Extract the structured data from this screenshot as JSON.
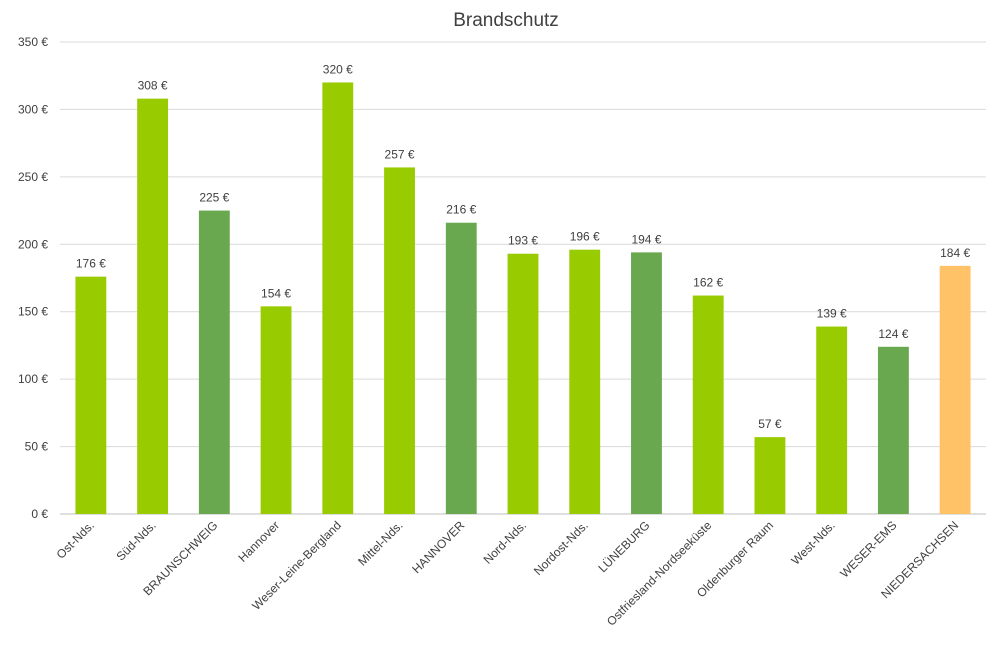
{
  "chart_data": {
    "type": "bar",
    "title": "Brandschutz",
    "xlabel": "",
    "ylabel": "",
    "ylim": [
      0,
      350
    ],
    "ytick_step": 50,
    "ytick_labels": [
      "0 €",
      "50 €",
      "100 €",
      "150 €",
      "200 €",
      "250 €",
      "300 €",
      "350 €"
    ],
    "grid": true,
    "legend": "none",
    "categories": [
      "Ost-Nds.",
      "Süd-Nds.",
      "BRAUNSCHWEIG",
      "Hannover",
      "Weser-Leine-Bergland",
      "Mittel-Nds.",
      "HANNOVER",
      "Nord-Nds.",
      "Nordost-Nds.",
      "LÜNEBURG",
      "Ostfriesland-Nordseeküste",
      "Oldenburger Raum",
      "West-Nds.",
      "WESER-EMS",
      "NIEDERSACHSEN"
    ],
    "values": [
      176,
      308,
      225,
      154,
      320,
      257,
      216,
      193,
      196,
      194,
      162,
      57,
      139,
      124,
      184
    ],
    "data_labels": [
      "176 €",
      "308 €",
      "225 €",
      "154 €",
      "320 €",
      "257 €",
      "216 €",
      "193 €",
      "196 €",
      "194 €",
      "162 €",
      "57 €",
      "139 €",
      "124 €",
      "184 €"
    ],
    "bar_colors": [
      "#99cc00",
      "#99cc00",
      "#6aa84f",
      "#99cc00",
      "#99cc00",
      "#99cc00",
      "#6aa84f",
      "#99cc00",
      "#99cc00",
      "#6aa84f",
      "#99cc00",
      "#99cc00",
      "#99cc00",
      "#6aa84f",
      "#ffc266"
    ]
  }
}
